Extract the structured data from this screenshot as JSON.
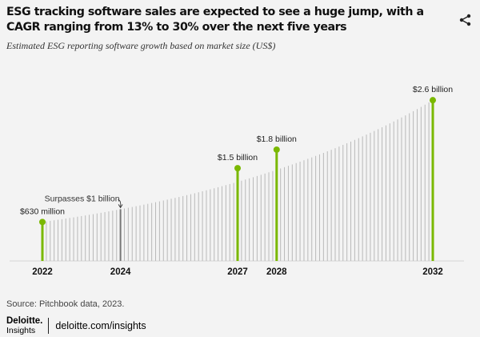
{
  "header": {
    "title": "ESG tracking software sales are expected to see a huge jump, with a CAGR ranging from 13% to 30% over the next five years",
    "subtitle": "Estimated ESG reporting software growth based on market size (US$)",
    "share_icon": "share-icon"
  },
  "chart_data": {
    "type": "bar",
    "title": "Estimated ESG reporting software growth based on market size (US$)",
    "xlabel": "",
    "ylabel": "",
    "unit": "US$ billion",
    "x_range": [
      2022,
      2032
    ],
    "ylim": [
      0,
      2.9
    ],
    "series_start": {
      "year": 2022,
      "value": 0.63
    },
    "series_end": {
      "year": 2032,
      "value": 2.6
    },
    "highlighted": [
      {
        "year": 2022,
        "value": 0.63,
        "label": "$630 million",
        "color": "#7ab800"
      },
      {
        "year": 2024,
        "value": 1.0,
        "label": "Surpasses $1 billion",
        "color": "#777777",
        "annotation": true
      },
      {
        "year": 2027,
        "value": 1.5,
        "label": "$1.5 billion",
        "color": "#7ab800"
      },
      {
        "year": 2028,
        "value": 1.8,
        "label": "$1.8 billion",
        "color": "#7ab800"
      },
      {
        "year": 2032,
        "value": 2.6,
        "label": "$2.6 billion",
        "color": "#7ab800"
      }
    ],
    "tick_labels": [
      "2022",
      "2024",
      "2027",
      "2028",
      "2032"
    ],
    "intermediate_bar_count": 100,
    "colors": {
      "accent": "#7ab800",
      "thin_bar": "#b9b9b9",
      "baseline": "#d6d6d6",
      "annotation": "#777777"
    }
  },
  "footer": {
    "source": "Source: Pitchbook data, 2023.",
    "logo_name": "Deloitte.",
    "logo_sub": "Insights",
    "link": "deloitte.com/insights"
  }
}
